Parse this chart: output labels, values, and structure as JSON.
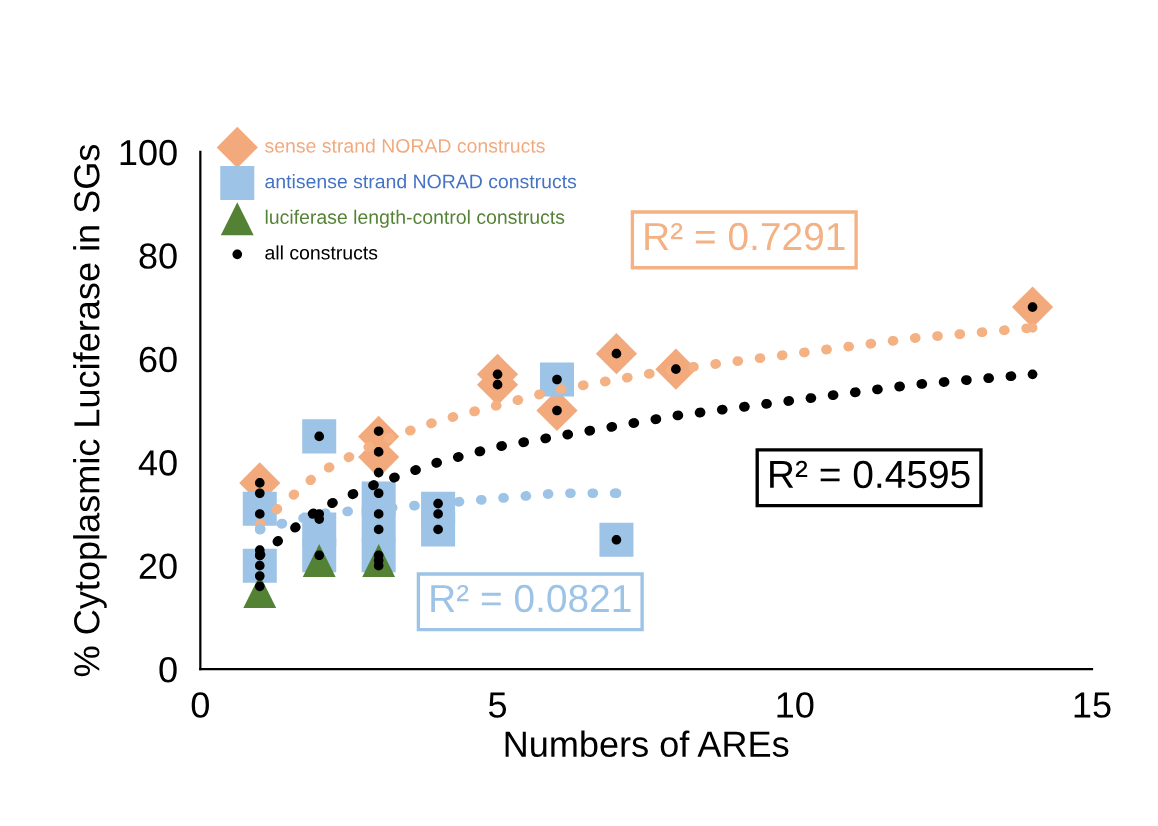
{
  "chart_data": {
    "type": "scatter",
    "xlabel": "Numbers of AREs",
    "ylabel": "% Cytoplasmic Luciferase in SGs",
    "xlim": [
      0,
      15
    ],
    "ylim": [
      0,
      100
    ],
    "xticks": [
      0,
      5,
      10,
      15
    ],
    "yticks": [
      0,
      20,
      40,
      60,
      80,
      100
    ],
    "grid": false,
    "legend": "top left",
    "series": [
      {
        "name": "sense strand NORAD constructs",
        "color": "#f2a97c",
        "marker": "diamond",
        "x": [
          1,
          3,
          3,
          5,
          5,
          6,
          7,
          8,
          14
        ],
        "values": [
          36,
          45,
          41,
          57,
          55,
          50,
          61,
          58,
          70
        ]
      },
      {
        "name": "antisense strand NORAD constructs",
        "color": "#9dc3e6",
        "marker": "square",
        "x": [
          1,
          1,
          2,
          2,
          2,
          3,
          3,
          3,
          4,
          4,
          6,
          7
        ],
        "values": [
          31,
          20,
          45,
          27,
          22,
          33,
          28,
          22,
          31,
          27,
          56,
          25
        ]
      },
      {
        "name": "luciferase length-control constructs",
        "color": "#548235",
        "marker": "triangle",
        "x": [
          1,
          2,
          3
        ],
        "values": [
          15,
          21,
          21
        ]
      },
      {
        "name": "all constructs",
        "color": "#000000",
        "marker": "circle",
        "x": [
          1,
          1,
          1,
          1,
          1,
          1,
          1,
          2,
          2,
          2,
          2,
          3,
          3,
          3,
          3,
          3,
          3,
          3,
          3,
          3,
          4,
          4,
          4,
          5,
          5,
          6,
          6,
          7,
          7,
          8,
          14
        ],
        "values": [
          36,
          34,
          30,
          23,
          20,
          18,
          16,
          45,
          30,
          29,
          22,
          46,
          42,
          38,
          34,
          30,
          27,
          22,
          21,
          20,
          32,
          30,
          27,
          57,
          55,
          56,
          50,
          61,
          25,
          58,
          70
        ]
      },
      {
        "type": "line",
        "line_style": "dotted",
        "color": "#f4b183",
        "x": [
          1,
          2,
          3,
          4,
          5,
          6,
          7,
          8,
          10,
          12,
          14
        ],
        "values": [
          28,
          38,
          44,
          48,
          51,
          54,
          56,
          58,
          61,
          64,
          66
        ]
      },
      {
        "type": "line",
        "line_style": "dotted",
        "color": "#000000",
        "x": [
          1,
          2,
          3,
          4,
          5,
          6,
          7,
          8,
          10,
          12,
          14
        ],
        "values": [
          22,
          31,
          36,
          40,
          43,
          45,
          47,
          49,
          52,
          55,
          57
        ]
      },
      {
        "type": "line",
        "line_style": "dotted",
        "color": "#9dc3e6",
        "x": [
          1,
          2,
          3,
          4,
          5,
          6,
          7
        ],
        "values": [
          27,
          30,
          31,
          32,
          33,
          34,
          34
        ]
      }
    ],
    "annotations": [
      "R² = 0.7291",
      "R² = 0.4595",
      "R² = 0.0821"
    ]
  }
}
